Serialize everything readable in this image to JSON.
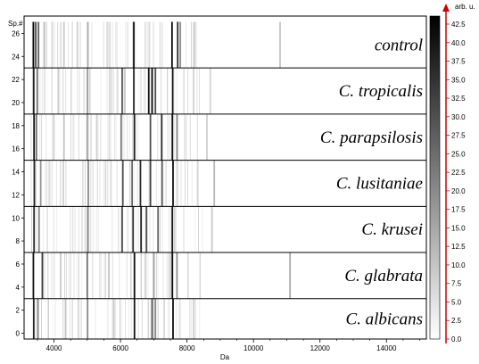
{
  "chart_data": {
    "type": "heatmap",
    "title": "",
    "xlabel": "Da",
    "ylabel": "Sp.#",
    "colorbar_label": "arb. u.",
    "xlim": [
      3100,
      15200
    ],
    "ylim": [
      -0.5,
      27.5
    ],
    "x_ticks": [
      4000,
      6000,
      8000,
      10000,
      12000,
      14000
    ],
    "y_ticks": [
      0,
      2,
      4,
      6,
      8,
      10,
      12,
      14,
      16,
      18,
      20,
      22,
      24,
      26
    ],
    "colorbar_range": [
      0,
      43
    ],
    "colorbar_ticks": [
      "0.0",
      "2.5",
      "5.0",
      "7.5",
      "10.0",
      "12.5",
      "15.0",
      "17.5",
      "20.0",
      "22.5",
      "25.0",
      "27.5",
      "30.0",
      "32.5",
      "35.0",
      "37.5",
      "40.0",
      "42.5"
    ],
    "colorscale": [
      "#ffffff",
      "#000000"
    ],
    "groups": [
      {
        "name": "control",
        "spectra": [
          23,
          27
        ],
        "peaks": [
          {
            "mz": 3380,
            "i": 42
          },
          {
            "mz": 3450,
            "i": 30
          },
          {
            "mz": 3530,
            "i": 26
          },
          {
            "mz": 3700,
            "i": 10
          },
          {
            "mz": 4300,
            "i": 9
          },
          {
            "mz": 5020,
            "i": 14
          },
          {
            "mz": 6400,
            "i": 40
          },
          {
            "mz": 7550,
            "i": 41
          },
          {
            "mz": 7720,
            "i": 35
          },
          {
            "mz": 7800,
            "i": 18
          },
          {
            "mz": 8230,
            "i": 8
          },
          {
            "mz": 10800,
            "i": 10
          }
        ]
      },
      {
        "name": "C. tropicalis",
        "spectra": [
          19,
          23
        ],
        "peaks": [
          {
            "mz": 3390,
            "i": 38
          },
          {
            "mz": 3500,
            "i": 22
          },
          {
            "mz": 4130,
            "i": 9
          },
          {
            "mz": 5010,
            "i": 18
          },
          {
            "mz": 6050,
            "i": 28
          },
          {
            "mz": 6400,
            "i": 36
          },
          {
            "mz": 6850,
            "i": 40
          },
          {
            "mz": 6950,
            "i": 42
          },
          {
            "mz": 7050,
            "i": 30
          },
          {
            "mz": 7570,
            "i": 40
          },
          {
            "mz": 8200,
            "i": 8
          },
          {
            "mz": 8700,
            "i": 7
          }
        ]
      },
      {
        "name": "C. parapsilosis",
        "spectra": [
          15,
          19
        ],
        "peaks": [
          {
            "mz": 3400,
            "i": 40
          },
          {
            "mz": 3470,
            "i": 24
          },
          {
            "mz": 4300,
            "i": 10
          },
          {
            "mz": 5000,
            "i": 16
          },
          {
            "mz": 6020,
            "i": 22
          },
          {
            "mz": 6420,
            "i": 38
          },
          {
            "mz": 6900,
            "i": 30
          },
          {
            "mz": 7240,
            "i": 36
          },
          {
            "mz": 7560,
            "i": 41
          },
          {
            "mz": 7700,
            "i": 20
          },
          {
            "mz": 8600,
            "i": 8
          }
        ]
      },
      {
        "name": "C. lusitaniae",
        "spectra": [
          11,
          15
        ],
        "peaks": [
          {
            "mz": 3410,
            "i": 38
          },
          {
            "mz": 3600,
            "i": 18
          },
          {
            "mz": 4280,
            "i": 8
          },
          {
            "mz": 5030,
            "i": 20
          },
          {
            "mz": 6070,
            "i": 30
          },
          {
            "mz": 6350,
            "i": 26
          },
          {
            "mz": 6600,
            "i": 36
          },
          {
            "mz": 6900,
            "i": 32
          },
          {
            "mz": 7250,
            "i": 28
          },
          {
            "mz": 7580,
            "i": 40
          },
          {
            "mz": 8820,
            "i": 12
          }
        ]
      },
      {
        "name": "C. krusei",
        "spectra": [
          7,
          11
        ],
        "peaks": [
          {
            "mz": 3400,
            "i": 36
          },
          {
            "mz": 3550,
            "i": 20
          },
          {
            "mz": 5020,
            "i": 22
          },
          {
            "mz": 6050,
            "i": 30
          },
          {
            "mz": 6380,
            "i": 34
          },
          {
            "mz": 6620,
            "i": 38
          },
          {
            "mz": 6780,
            "i": 30
          },
          {
            "mz": 7130,
            "i": 26
          },
          {
            "mz": 7560,
            "i": 40
          },
          {
            "mz": 8750,
            "i": 9
          }
        ]
      },
      {
        "name": "C. glabrata",
        "spectra": [
          3,
          7
        ],
        "peaks": [
          {
            "mz": 3380,
            "i": 40
          },
          {
            "mz": 3650,
            "i": 34
          },
          {
            "mz": 4200,
            "i": 9
          },
          {
            "mz": 5000,
            "i": 24
          },
          {
            "mz": 5650,
            "i": 10
          },
          {
            "mz": 6420,
            "i": 40
          },
          {
            "mz": 7000,
            "i": 16
          },
          {
            "mz": 7560,
            "i": 42
          },
          {
            "mz": 7700,
            "i": 18
          },
          {
            "mz": 11100,
            "i": 14
          }
        ]
      },
      {
        "name": "C. albicans",
        "spectra": [
          -0.5,
          3
        ],
        "peaks": [
          {
            "mz": 3390,
            "i": 38
          },
          {
            "mz": 3520,
            "i": 20
          },
          {
            "mz": 4350,
            "i": 10
          },
          {
            "mz": 5010,
            "i": 20
          },
          {
            "mz": 5800,
            "i": 9
          },
          {
            "mz": 6420,
            "i": 40
          },
          {
            "mz": 6950,
            "i": 28
          },
          {
            "mz": 7050,
            "i": 20
          },
          {
            "mz": 7580,
            "i": 40
          },
          {
            "mz": 8200,
            "i": 8
          }
        ]
      }
    ]
  }
}
